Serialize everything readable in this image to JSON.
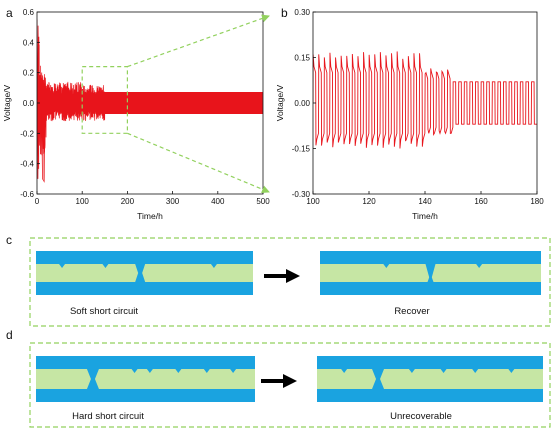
{
  "panels": {
    "a": "a",
    "b": "b",
    "c": "c",
    "d": "d"
  },
  "colors": {
    "trace": "#e8141b",
    "electrode": "#1aa3e0",
    "electrolyte": "#c6e6a4",
    "guide": "#92d15e",
    "arrow": "#000000"
  },
  "chart_data": [
    {
      "id": "a",
      "type": "line",
      "xlabel": "Time/h",
      "ylabel": "Voltage/V",
      "xlim": [
        0,
        500
      ],
      "ylim": [
        -0.6,
        0.6
      ],
      "xticks": [
        0,
        100,
        200,
        300,
        400,
        500
      ],
      "yticks": [
        -0.6,
        -0.4,
        -0.2,
        0.0,
        0.2,
        0.4,
        0.6
      ],
      "tick_labels_x": [
        "0",
        "100",
        "200",
        "300",
        "400",
        "500"
      ],
      "tick_labels_y": [
        "-0.6",
        "-0.4",
        "-0.2",
        "0.0",
        "0.2",
        "0.4",
        "0.6"
      ],
      "series": [
        {
          "segments": [
            {
              "t_start": 0,
              "t_end": 5,
              "amplitude_upper": 0.55,
              "amplitude_lower": -0.5
            },
            {
              "t_start": 5,
              "t_end": 20,
              "amplitude_upper": 0.25,
              "amplitude_lower": -0.35
            },
            {
              "t_start": 20,
              "t_end": 100,
              "amplitude_upper": 0.14,
              "amplitude_lower": -0.12
            },
            {
              "t_start": 100,
              "t_end": 150,
              "amplitude_upper": 0.12,
              "amplitude_lower": -0.12
            },
            {
              "t_start": 150,
              "t_end": 500,
              "amplitude_upper": 0.07,
              "amplitude_lower": -0.07
            }
          ],
          "cycle_period_h": 2
        }
      ],
      "zoom_box": {
        "x": [
          100,
          200
        ],
        "y": [
          -0.2,
          0.24
        ]
      }
    },
    {
      "id": "b",
      "type": "line",
      "xlabel": "Time/h",
      "ylabel": "Voltage/V",
      "xlim": [
        100,
        180
      ],
      "ylim": [
        -0.3,
        0.3
      ],
      "xticks": [
        100,
        120,
        140,
        160,
        180
      ],
      "yticks": [
        -0.3,
        -0.15,
        0.0,
        0.15,
        0.3
      ],
      "tick_labels_x": [
        "100",
        "120",
        "140",
        "160",
        "180"
      ],
      "tick_labels_y": [
        "-0.30",
        "-0.15",
        "0.00",
        "0.15",
        "0.30"
      ],
      "series": [
        {
          "cycle_period_h": 2,
          "stages": [
            {
              "t_start": 100,
              "t_end": 140,
              "upper_peak": 0.17,
              "upper_plateau": 0.1,
              "lower_peak": -0.15,
              "lower_plateau": -0.1
            },
            {
              "t_start": 140,
              "t_end": 150,
              "upper_peak": 0.12,
              "upper_plateau": 0.08,
              "lower_peak": -0.11,
              "lower_plateau": -0.08
            },
            {
              "t_start": 150,
              "t_end": 180,
              "upper_peak": 0.07,
              "upper_plateau": 0.07,
              "lower_peak": -0.07,
              "lower_plateau": -0.07
            }
          ]
        }
      ]
    }
  ],
  "diagrams": {
    "c": {
      "left_caption": "Soft short circuit",
      "right_caption": "Recover"
    },
    "d": {
      "left_caption": "Hard short circuit",
      "right_caption": "Unrecoverable"
    }
  }
}
